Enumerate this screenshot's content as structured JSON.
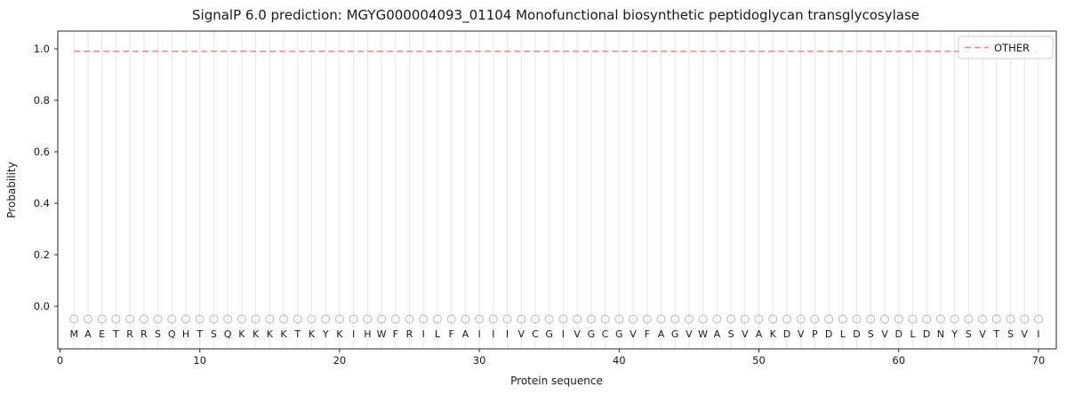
{
  "chart_data": {
    "type": "line",
    "title": "SignalP 6.0 prediction: MGYG000004093_01104 Monofunctional biosynthetic peptidoglycan transglycosylase",
    "xlabel": "Protein sequence",
    "ylabel": "Probability",
    "xlim": [
      0,
      71
    ],
    "ylim": [
      -0.17,
      1.07
    ],
    "xticks": [
      "0",
      "10",
      "20",
      "30",
      "40",
      "50",
      "60",
      "70"
    ],
    "yticks": [
      "0.0",
      "0.2",
      "0.4",
      "0.6",
      "0.8",
      "1.0"
    ],
    "grid": {
      "vertical_per_residue": true,
      "color": "#e7e7e7"
    },
    "series": [
      {
        "name": "OTHER",
        "style": "dashed",
        "color": "#f88080",
        "x_start": 1,
        "x_end": 70,
        "constant_value": 0.99
      }
    ],
    "legend": {
      "position": "upper right",
      "entries": [
        {
          "label": "OTHER",
          "color": "#f88080",
          "dashed": true
        }
      ]
    },
    "sequence": "MAETRRSQHTSQKKKKTKYKIHWFRILFAIIIVCGIVGCGVFAGVWASVAKDVPDLDSVDLDNYSVTSVI",
    "residue_markers": {
      "shape": "open-circle",
      "color": "#b5b5b5",
      "y": -0.05
    },
    "axis_color": "#262626"
  }
}
